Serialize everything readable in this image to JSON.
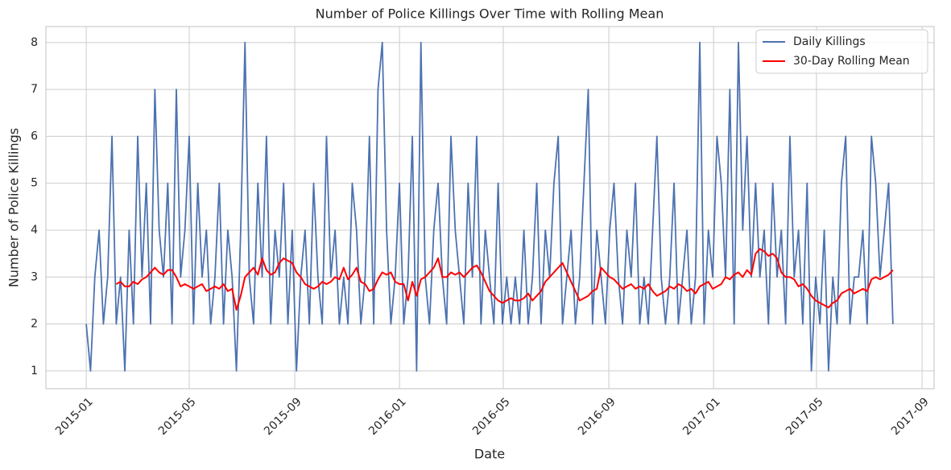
{
  "chart_data": {
    "type": "line",
    "title": "Number of Police Killings Over Time with Rolling Mean",
    "xlabel": "Date",
    "ylabel": "Number of Police Killings",
    "x": [
      0,
      5,
      10,
      15,
      20,
      25,
      30,
      35,
      40,
      45,
      50,
      55,
      60,
      65,
      70,
      75,
      80,
      85,
      90,
      95,
      100,
      105,
      110,
      115,
      120,
      125,
      130,
      135,
      140,
      145,
      150,
      155,
      160,
      165,
      170,
      175,
      180,
      185,
      190,
      195,
      200,
      205,
      210,
      215,
      220,
      225,
      230,
      235,
      240,
      245,
      250,
      255,
      260,
      265,
      270,
      275,
      280,
      285,
      290,
      295,
      300,
      305,
      310,
      315,
      320,
      325,
      330,
      335,
      340,
      345,
      350,
      355,
      360,
      365,
      370,
      375,
      380,
      385,
      390,
      395,
      400,
      405,
      410,
      415,
      420,
      425,
      430,
      435,
      440,
      445,
      450,
      455,
      460,
      465,
      470,
      475,
      480,
      485,
      490,
      495,
      500,
      505,
      510,
      515,
      520,
      525,
      530,
      535,
      540,
      545,
      550,
      555,
      560,
      565,
      570,
      575,
      580,
      585,
      590,
      595,
      600,
      605,
      610,
      615,
      620,
      625,
      630,
      635,
      640,
      645,
      650,
      655,
      660,
      665,
      670,
      675,
      680,
      685,
      690,
      695,
      700,
      705,
      710,
      715,
      720,
      725,
      730,
      735,
      740,
      745,
      750,
      755,
      760,
      765,
      770,
      775,
      780,
      785,
      790,
      795,
      800,
      805,
      810,
      815,
      820,
      825,
      830,
      835,
      840,
      845,
      850,
      855,
      860,
      865,
      870,
      875,
      880,
      885,
      890,
      895,
      900,
      905,
      910,
      915,
      920,
      925,
      930,
      935,
      940
    ],
    "xlim": [
      -47,
      988
    ],
    "xticks": [
      {
        "value": 0,
        "label": "2015-01"
      },
      {
        "value": 120,
        "label": "2015-05"
      },
      {
        "value": 243,
        "label": "2015-09"
      },
      {
        "value": 365,
        "label": "2016-01"
      },
      {
        "value": 486,
        "label": "2016-05"
      },
      {
        "value": 609,
        "label": "2016-09"
      },
      {
        "value": 731,
        "label": "2017-01"
      },
      {
        "value": 851,
        "label": "2017-05"
      },
      {
        "value": 974,
        "label": "2017-09"
      }
    ],
    "ylim": [
      0.62,
      8.34
    ],
    "yticks": [
      1,
      2,
      3,
      4,
      5,
      6,
      7,
      8
    ],
    "grid": true,
    "legend": "upper right",
    "series": [
      {
        "name": "Daily Killings",
        "color": "#4c72b0",
        "values": [
          2,
          1,
          3,
          4,
          2,
          3,
          6,
          2,
          3,
          1,
          4,
          2,
          6,
          3,
          5,
          2,
          7,
          4,
          3,
          5,
          2,
          7,
          3,
          4,
          6,
          2,
          5,
          3,
          4,
          2,
          3,
          5,
          2,
          4,
          3,
          1,
          4,
          8,
          3,
          2,
          5,
          3,
          6,
          2,
          4,
          3,
          5,
          2,
          4,
          1,
          3,
          4,
          2,
          5,
          3,
          2,
          6,
          3,
          4,
          2,
          3,
          2,
          5,
          4,
          2,
          3,
          6,
          2,
          7,
          8,
          4,
          2,
          3,
          5,
          2,
          3,
          6,
          1,
          8,
          3,
          2,
          4,
          5,
          3,
          2,
          6,
          4,
          3,
          2,
          5,
          3,
          6,
          2,
          4,
          3,
          2,
          5,
          2,
          3,
          2,
          3,
          2,
          4,
          2,
          3,
          5,
          2,
          4,
          3,
          5,
          6,
          2,
          3,
          4,
          2,
          3,
          5,
          7,
          2,
          4,
          3,
          2,
          4,
          5,
          3,
          2,
          4,
          3,
          5,
          2,
          3,
          2,
          4,
          6,
          3,
          2,
          3,
          5,
          2,
          3,
          4,
          2,
          3,
          8,
          2,
          4,
          3,
          6,
          5,
          3,
          7,
          2,
          8,
          4,
          6,
          3,
          5,
          3,
          4,
          2,
          5,
          3,
          4,
          2,
          6,
          3,
          4,
          2,
          5,
          1,
          3,
          2,
          4,
          1,
          3,
          2,
          5,
          6,
          2,
          3,
          3,
          4,
          2,
          6,
          5,
          3,
          4,
          5,
          2
        ]
      },
      {
        "name": "30-Day Rolling Mean",
        "color": "#ff0000",
        "values": [
          null,
          null,
          null,
          null,
          null,
          null,
          null,
          2.85,
          2.9,
          2.8,
          2.8,
          2.9,
          2.85,
          2.95,
          3.0,
          3.1,
          3.2,
          3.1,
          3.05,
          3.15,
          3.15,
          3.0,
          2.8,
          2.85,
          2.8,
          2.75,
          2.8,
          2.85,
          2.7,
          2.75,
          2.8,
          2.75,
          2.85,
          2.7,
          2.75,
          2.3,
          2.6,
          3.0,
          3.1,
          3.2,
          3.05,
          3.4,
          3.15,
          3.05,
          3.1,
          3.3,
          3.4,
          3.35,
          3.3,
          3.1,
          3.0,
          2.85,
          2.8,
          2.75,
          2.8,
          2.9,
          2.85,
          2.9,
          3.0,
          2.95,
          3.2,
          2.95,
          3.05,
          3.2,
          2.9,
          2.85,
          2.7,
          2.75,
          2.95,
          3.1,
          3.05,
          3.1,
          2.9,
          2.85,
          2.85,
          2.5,
          2.9,
          2.6,
          2.95,
          3.0,
          3.1,
          3.2,
          3.4,
          3.0,
          3.0,
          3.1,
          3.05,
          3.1,
          3.0,
          3.1,
          3.2,
          3.25,
          3.1,
          2.9,
          2.7,
          2.6,
          2.5,
          2.45,
          2.5,
          2.55,
          2.5,
          2.5,
          2.55,
          2.65,
          2.5,
          2.6,
          2.7,
          2.9,
          3.0,
          3.1,
          3.2,
          3.3,
          3.1,
          2.9,
          2.7,
          2.5,
          2.55,
          2.6,
          2.7,
          2.75,
          3.2,
          3.1,
          3.0,
          2.95,
          2.85,
          2.75,
          2.8,
          2.85,
          2.75,
          2.8,
          2.75,
          2.85,
          2.7,
          2.6,
          2.65,
          2.7,
          2.8,
          2.75,
          2.85,
          2.8,
          2.7,
          2.75,
          2.65,
          2.8,
          2.85,
          2.9,
          2.75,
          2.8,
          2.85,
          3.0,
          2.95,
          3.05,
          3.1,
          3.0,
          3.15,
          3.05,
          3.5,
          3.6,
          3.55,
          3.45,
          3.5,
          3.4,
          3.1,
          3.0,
          3.0,
          2.95,
          2.8,
          2.85,
          2.75,
          2.6,
          2.5,
          2.45,
          2.4,
          2.35,
          2.45,
          2.5,
          2.65,
          2.7,
          2.75,
          2.65,
          2.7,
          2.75,
          2.7,
          2.95,
          3.0,
          2.95,
          3.0,
          3.05,
          3.15
        ]
      }
    ]
  }
}
